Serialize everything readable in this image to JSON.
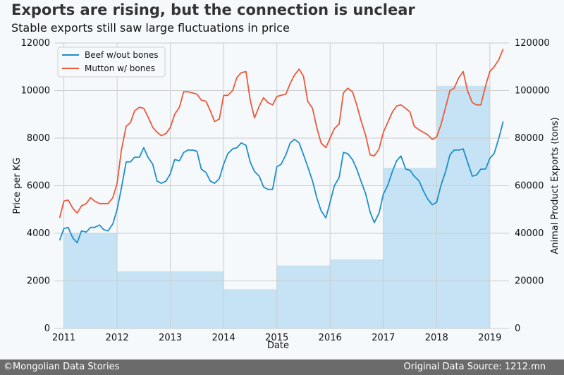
{
  "header": {
    "title": "Exports are rising, but the connection is unclear",
    "subtitle": "Stable exports still saw large fluctuations in price"
  },
  "footer": {
    "left": "©Mongolian Data Stories",
    "right": "Original Data Source: 1212.mn"
  },
  "chart_data": {
    "type": "line",
    "title": "Exports are rising, but the connection is unclear",
    "subtitle": "Stable exports still saw large fluctuations in price",
    "xlabel": "Date",
    "ylabel": "Price per KG",
    "y2label": "Animal Product Exports (tons)",
    "xlim": [
      2010.82,
      2019.36
    ],
    "ylim": [
      0,
      12000
    ],
    "y2lim": [
      0,
      120000
    ],
    "x_ticks": [
      2011,
      2012,
      2013,
      2014,
      2015,
      2016,
      2017,
      2018,
      2019
    ],
    "y_ticks": [
      0,
      2000,
      4000,
      6000,
      8000,
      10000,
      12000
    ],
    "y2_ticks": [
      0,
      20000,
      40000,
      60000,
      80000,
      100000,
      120000
    ],
    "grid": true,
    "legend": "top-left",
    "colors": {
      "beef": "#1f8ec9",
      "mutton": "#ec5a3c",
      "exports": "#c5e3f4",
      "grid": "#cccccc"
    },
    "exports_bars": [
      {
        "start": 2011,
        "end": 2012,
        "value": 40000
      },
      {
        "start": 2012,
        "end": 2013,
        "value": 24000
      },
      {
        "start": 2013,
        "end": 2014,
        "value": 24000
      },
      {
        "start": 2014,
        "end": 2015,
        "value": 16500
      },
      {
        "start": 2015,
        "end": 2016,
        "value": 26500
      },
      {
        "start": 2016,
        "end": 2017,
        "value": 29000
      },
      {
        "start": 2017,
        "end": 2018,
        "value": 67500
      },
      {
        "start": 2018,
        "end": 2019,
        "value": 102000
      }
    ],
    "series": [
      {
        "name": "Beef w/out bones",
        "color": "#1f8ec9",
        "x": [
          2010.92,
          2011.0,
          2011.08,
          2011.17,
          2011.25,
          2011.33,
          2011.42,
          2011.5,
          2011.58,
          2011.67,
          2011.75,
          2011.83,
          2011.92,
          2012.0,
          2012.08,
          2012.17,
          2012.25,
          2012.33,
          2012.42,
          2012.5,
          2012.58,
          2012.67,
          2012.75,
          2012.83,
          2012.92,
          2013.0,
          2013.08,
          2013.17,
          2013.25,
          2013.33,
          2013.42,
          2013.5,
          2013.58,
          2013.67,
          2013.75,
          2013.83,
          2013.92,
          2014.0,
          2014.08,
          2014.17,
          2014.25,
          2014.33,
          2014.42,
          2014.5,
          2014.58,
          2014.67,
          2014.75,
          2014.83,
          2014.92,
          2015.0,
          2015.08,
          2015.17,
          2015.25,
          2015.33,
          2015.42,
          2015.5,
          2015.58,
          2015.67,
          2015.75,
          2015.83,
          2015.92,
          2016.0,
          2016.08,
          2016.17,
          2016.25,
          2016.33,
          2016.42,
          2016.5,
          2016.58,
          2016.67,
          2016.75,
          2016.83,
          2016.92,
          2017.0,
          2017.08,
          2017.17,
          2017.25,
          2017.33,
          2017.42,
          2017.5,
          2017.58,
          2017.67,
          2017.75,
          2017.83,
          2017.92,
          2018.0,
          2018.08,
          2018.17,
          2018.25,
          2018.33,
          2018.42,
          2018.5,
          2018.58,
          2018.67,
          2018.75,
          2018.83,
          2018.92,
          2019.0,
          2019.08,
          2019.17,
          2019.25
        ],
        "values": [
          3700,
          4200,
          4250,
          3800,
          3600,
          4100,
          4050,
          4250,
          4250,
          4350,
          4150,
          4100,
          4400,
          5000,
          5900,
          7000,
          7000,
          7200,
          7200,
          7600,
          7200,
          6900,
          6200,
          6100,
          6200,
          6500,
          7100,
          7050,
          7400,
          7500,
          7500,
          7450,
          6700,
          6550,
          6200,
          6100,
          6300,
          6900,
          7350,
          7550,
          7600,
          7800,
          7700,
          7000,
          6600,
          6400,
          5950,
          5850,
          5850,
          6800,
          6900,
          7300,
          7800,
          7950,
          7800,
          7300,
          6800,
          6200,
          5500,
          4950,
          4650,
          5300,
          6000,
          6350,
          7400,
          7350,
          7100,
          6700,
          6200,
          5650,
          4900,
          4450,
          4850,
          5650,
          6000,
          6600,
          7050,
          7250,
          6700,
          6650,
          6400,
          6200,
          5800,
          5450,
          5200,
          5300,
          6000,
          6600,
          7300,
          7500,
          7500,
          7550,
          7000,
          6400,
          6450,
          6700,
          6700,
          7150,
          7350,
          8000,
          8700
        ]
      },
      {
        "name": "Mutton w/ bones",
        "color": "#ec5a3c",
        "x": [
          2010.92,
          2011.0,
          2011.08,
          2011.17,
          2011.25,
          2011.33,
          2011.42,
          2011.5,
          2011.58,
          2011.67,
          2011.75,
          2011.83,
          2011.92,
          2012.0,
          2012.08,
          2012.17,
          2012.25,
          2012.33,
          2012.42,
          2012.5,
          2012.58,
          2012.67,
          2012.75,
          2012.83,
          2012.92,
          2013.0,
          2013.08,
          2013.17,
          2013.25,
          2013.33,
          2013.42,
          2013.5,
          2013.58,
          2013.67,
          2013.75,
          2013.83,
          2013.92,
          2014.0,
          2014.08,
          2014.17,
          2014.25,
          2014.33,
          2014.42,
          2014.5,
          2014.58,
          2014.67,
          2014.75,
          2014.83,
          2014.92,
          2015.0,
          2015.08,
          2015.17,
          2015.25,
          2015.33,
          2015.42,
          2015.5,
          2015.58,
          2015.67,
          2015.75,
          2015.83,
          2015.92,
          2016.0,
          2016.08,
          2016.17,
          2016.25,
          2016.33,
          2016.42,
          2016.5,
          2016.58,
          2016.67,
          2016.75,
          2016.83,
          2016.92,
          2017.0,
          2017.08,
          2017.17,
          2017.25,
          2017.33,
          2017.42,
          2017.5,
          2017.58,
          2017.67,
          2017.75,
          2017.83,
          2017.92,
          2018.0,
          2018.08,
          2018.17,
          2018.25,
          2018.33,
          2018.42,
          2018.5,
          2018.58,
          2018.67,
          2018.75,
          2018.83,
          2018.92,
          2019.0,
          2019.08,
          2019.17,
          2019.25
        ],
        "values": [
          4650,
          5350,
          5400,
          5050,
          4850,
          5150,
          5250,
          5500,
          5350,
          5250,
          5250,
          5250,
          5500,
          6100,
          7500,
          8500,
          8650,
          9150,
          9300,
          9250,
          8900,
          8450,
          8250,
          8100,
          8200,
          8450,
          9000,
          9300,
          9950,
          9950,
          9900,
          9850,
          9600,
          9550,
          9150,
          8700,
          8800,
          9800,
          9800,
          10000,
          10550,
          10750,
          10800,
          9600,
          8850,
          9350,
          9700,
          9500,
          9400,
          9750,
          9800,
          9850,
          10300,
          10650,
          10900,
          10600,
          9550,
          9250,
          8450,
          7800,
          7600,
          8000,
          8400,
          8600,
          9900,
          10100,
          9950,
          9400,
          8750,
          8100,
          7300,
          7250,
          7550,
          8250,
          8650,
          9100,
          9350,
          9400,
          9250,
          9100,
          8500,
          8350,
          8250,
          8150,
          7950,
          8050,
          8550,
          9300,
          10000,
          10100,
          10550,
          10800,
          10000,
          9500,
          9400,
          9400,
          10200,
          10800,
          11000,
          11300,
          11750
        ]
      }
    ]
  }
}
